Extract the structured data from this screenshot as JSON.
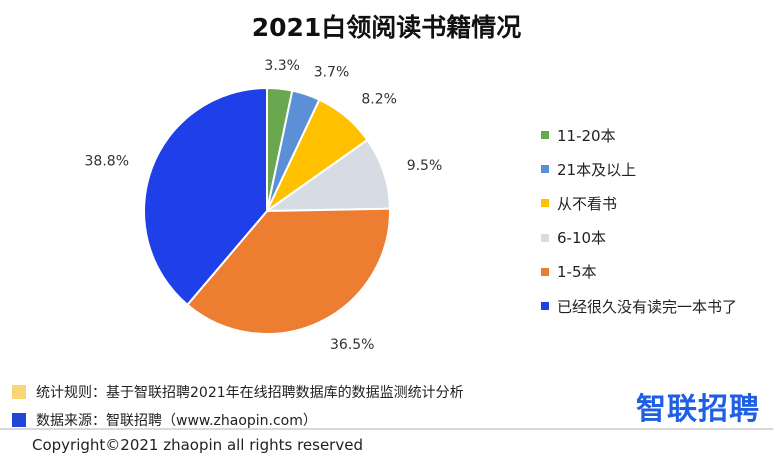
{
  "chart_data": {
    "type": "pie",
    "title": "2021白领阅读书籍情况",
    "slices": [
      {
        "name": "11-20本",
        "value": 3.3,
        "label": "3.3%",
        "color": "#6aa84f"
      },
      {
        "name": "21本及以上",
        "value": 3.7,
        "label": "3.7%",
        "color": "#5b8fd6"
      },
      {
        "name": "从不看书",
        "value": 8.2,
        "label": "8.2%",
        "color": "#ffc000"
      },
      {
        "name": "6-10本",
        "value": 9.5,
        "label": "9.5%",
        "color": "#d6dbe4"
      },
      {
        "name": "1-5本",
        "value": 36.5,
        "label": "36.5%",
        "color": "#ed7d31"
      },
      {
        "name": "已经很久没有读完一本书了",
        "value": 38.8,
        "label": "38.8%",
        "color": "#1f3fe8"
      }
    ],
    "legend_position": "right"
  },
  "notes": [
    {
      "text": "统计规则：基于智联招聘2021年在线招聘数据库的数据监测统计分析",
      "color": "#f7d774"
    },
    {
      "text": "数据来源：智联招聘（www.zhaopin.com）",
      "color": "#2147d6"
    }
  ],
  "logo": "智联招聘",
  "copyright": "Copyright©2021 zhaopin all rights reserved"
}
